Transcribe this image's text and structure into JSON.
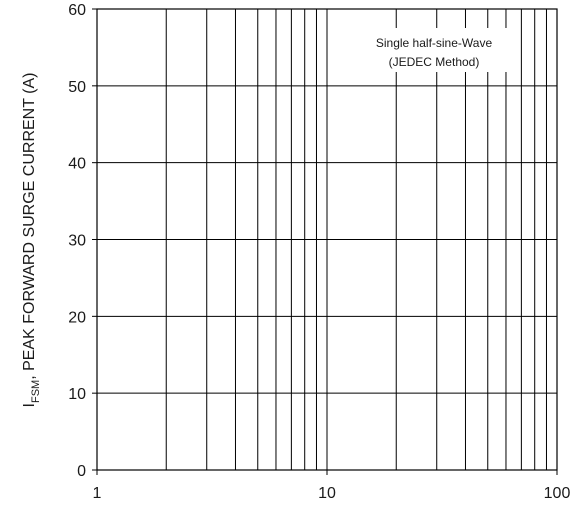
{
  "chart_data": {
    "type": "line",
    "title": "",
    "x_scale": "log",
    "xlim": [
      1,
      100
    ],
    "ylim": [
      0,
      60
    ],
    "x_ticks": [
      1,
      10,
      100
    ],
    "x_tick_labels": [
      "1",
      "10",
      "100"
    ],
    "y_ticks": [
      0,
      10,
      20,
      30,
      40,
      50,
      60
    ],
    "y_tick_labels": [
      "0",
      "10",
      "20",
      "30",
      "40",
      "50",
      "60"
    ],
    "ylabel": {
      "prefix": "I",
      "subscript": "FSM",
      "suffix": ", PEAK FORWARD SURGE CURRENT (A)"
    },
    "xlabel": "",
    "grid": true,
    "annotation": {
      "lines": [
        "Single half-sine-Wave",
        "(JEDEC Method)"
      ],
      "placement": "top-right"
    },
    "series": []
  }
}
